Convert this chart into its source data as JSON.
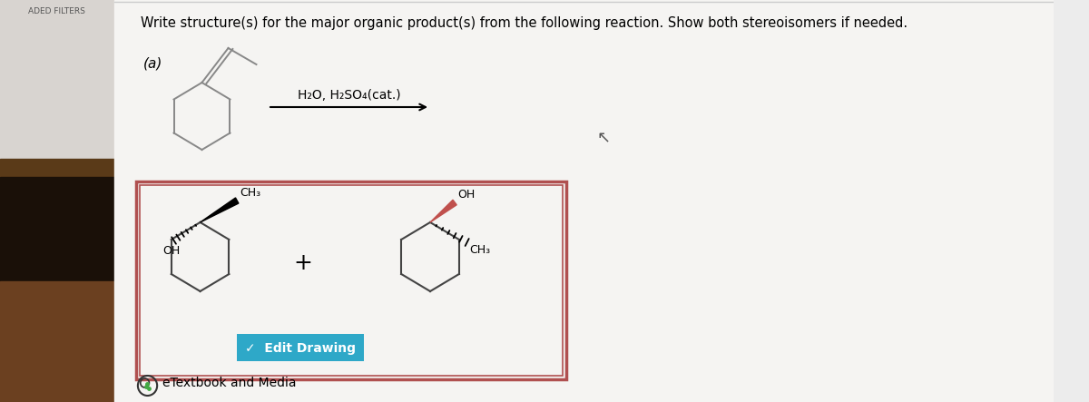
{
  "title_text": "Write structure(s) for the major organic product(s) from the following reaction. Show both stereoisomers if needed.",
  "label_a": "(a)",
  "reagent": "H₂O, H₂SO₄(cat.)",
  "plus_sign": "+",
  "edit_drawing": "✓  Edit Drawing",
  "etextbook": "eTextbook and Media",
  "page_bg": "#ececec",
  "white_bg": "#f5f4f2",
  "box_border": "#b05050",
  "btn_color": "#2ea8c8",
  "btn_text_color": "#ffffff",
  "dark_line": "#444444",
  "gray_line": "#888888",
  "red_bond": "#c0504d",
  "left_top_bg": "#d8d4d0",
  "left_bot_bg": "#1a1008",
  "left_mid_bg": "#5a3a18"
}
